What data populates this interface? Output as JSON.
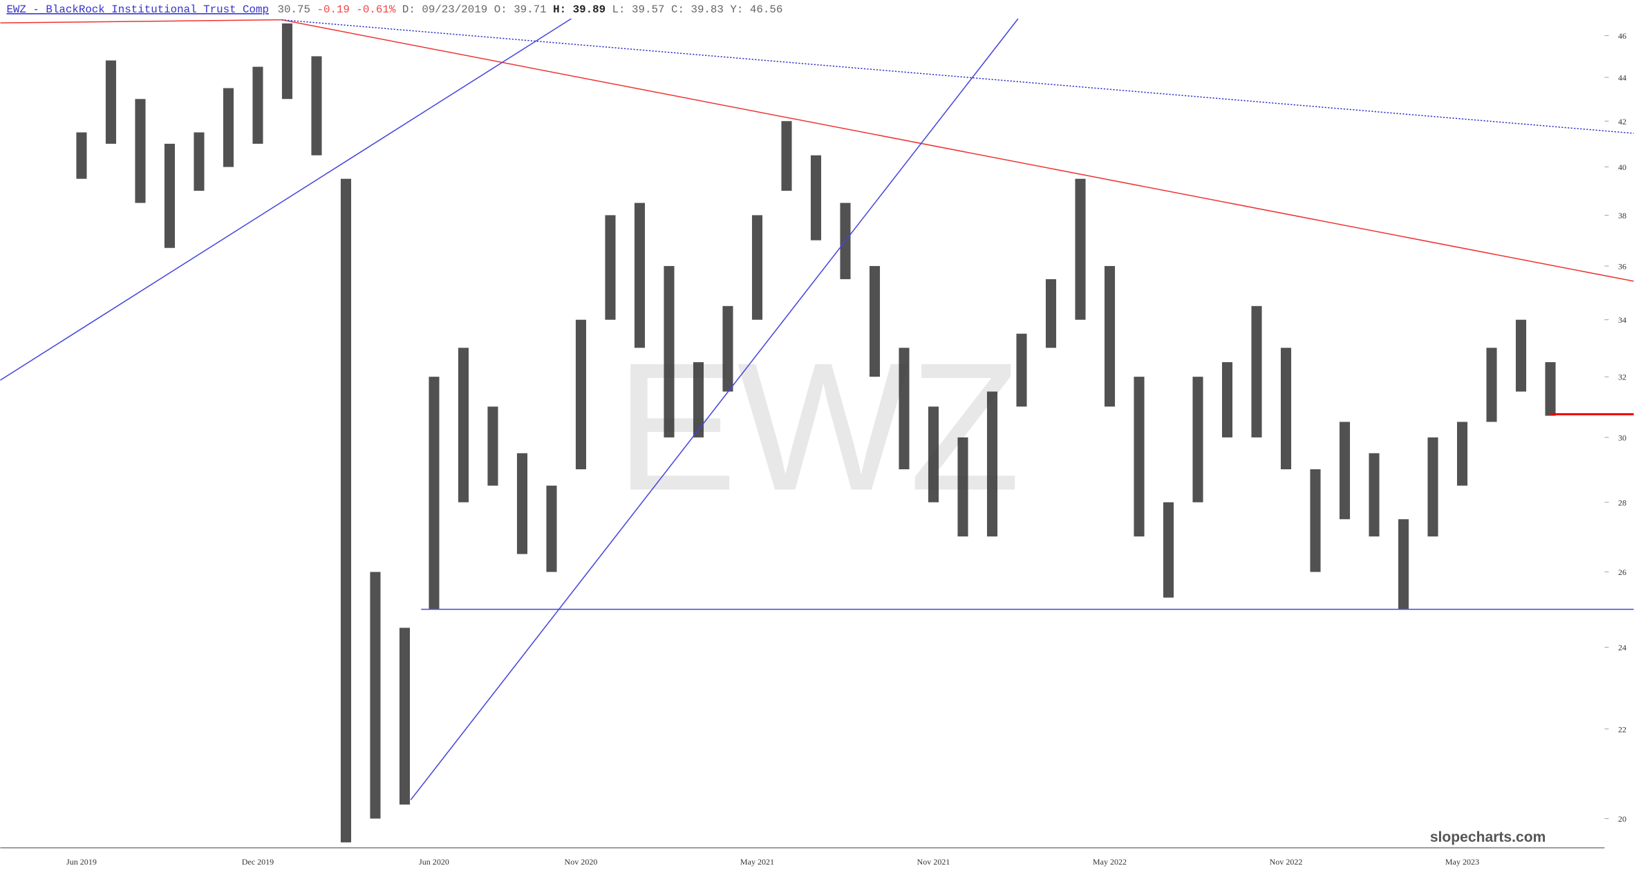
{
  "chart_data": {
    "type": "hilo",
    "symbol_title": "EWZ - BlackRock Institutional Trust Comp",
    "last_price": 30.75,
    "change": "-0.19",
    "change_pct": "-0.61%",
    "date": "D: 09/23/2019",
    "open": "O: 39.71",
    "high_label": "H: 39.89",
    "low_label": "L: 39.57",
    "close_label": "C: 39.83",
    "y_label": "Y: 46.56",
    "watermark": "EWZ",
    "brand": "slopecharts.com",
    "color": "#333333",
    "log": true,
    "ylim": [
      19.43,
      47.04
    ],
    "yticks": [
      20,
      22,
      24,
      26,
      28,
      30,
      32,
      34,
      36,
      38,
      40,
      42,
      44,
      46
    ],
    "categories": [
      "Jun 2019",
      null,
      null,
      null,
      null,
      null,
      "Dec 2019",
      null,
      null,
      null,
      null,
      null,
      "Jun 2020",
      null,
      null,
      null,
      null,
      "Nov 2020",
      null,
      null,
      null,
      null,
      null,
      "May 2021",
      null,
      null,
      null,
      null,
      null,
      "Nov 2021",
      null,
      null,
      null,
      null,
      null,
      "May 2022",
      null,
      null,
      null,
      null,
      null,
      "Nov 2022",
      null,
      null,
      null,
      null,
      null,
      "May 2023",
      null,
      null,
      null
    ],
    "high": [
      41.5,
      44.8,
      43,
      41,
      41.5,
      43.5,
      44.5,
      46.6,
      45,
      39.5,
      26,
      24.5,
      32,
      33,
      31,
      29.5,
      28.5,
      34,
      38,
      38.5,
      36,
      32.5,
      34.5,
      38,
      42,
      40.5,
      38.5,
      36,
      33,
      31,
      30,
      31.5,
      33.5,
      35.5,
      39.5,
      36,
      32,
      28,
      32,
      32.5,
      34.5,
      33,
      29,
      30.5,
      29.5,
      27.5,
      30,
      30.5,
      33,
      34,
      32.5
    ],
    "low": [
      39.5,
      41,
      38.5,
      36.7,
      39,
      40,
      41,
      43,
      40.5,
      19.5,
      20,
      20.3,
      25,
      28,
      28.5,
      26.5,
      26,
      29,
      34,
      33,
      30,
      30,
      31.5,
      34,
      39,
      37,
      35.5,
      32,
      29,
      28,
      27,
      27,
      31,
      33,
      34,
      31,
      27,
      25.3,
      28,
      30,
      30,
      29,
      26,
      27.5,
      27,
      25,
      27,
      28.5,
      30.5,
      31.5,
      30.7
    ]
  }
}
